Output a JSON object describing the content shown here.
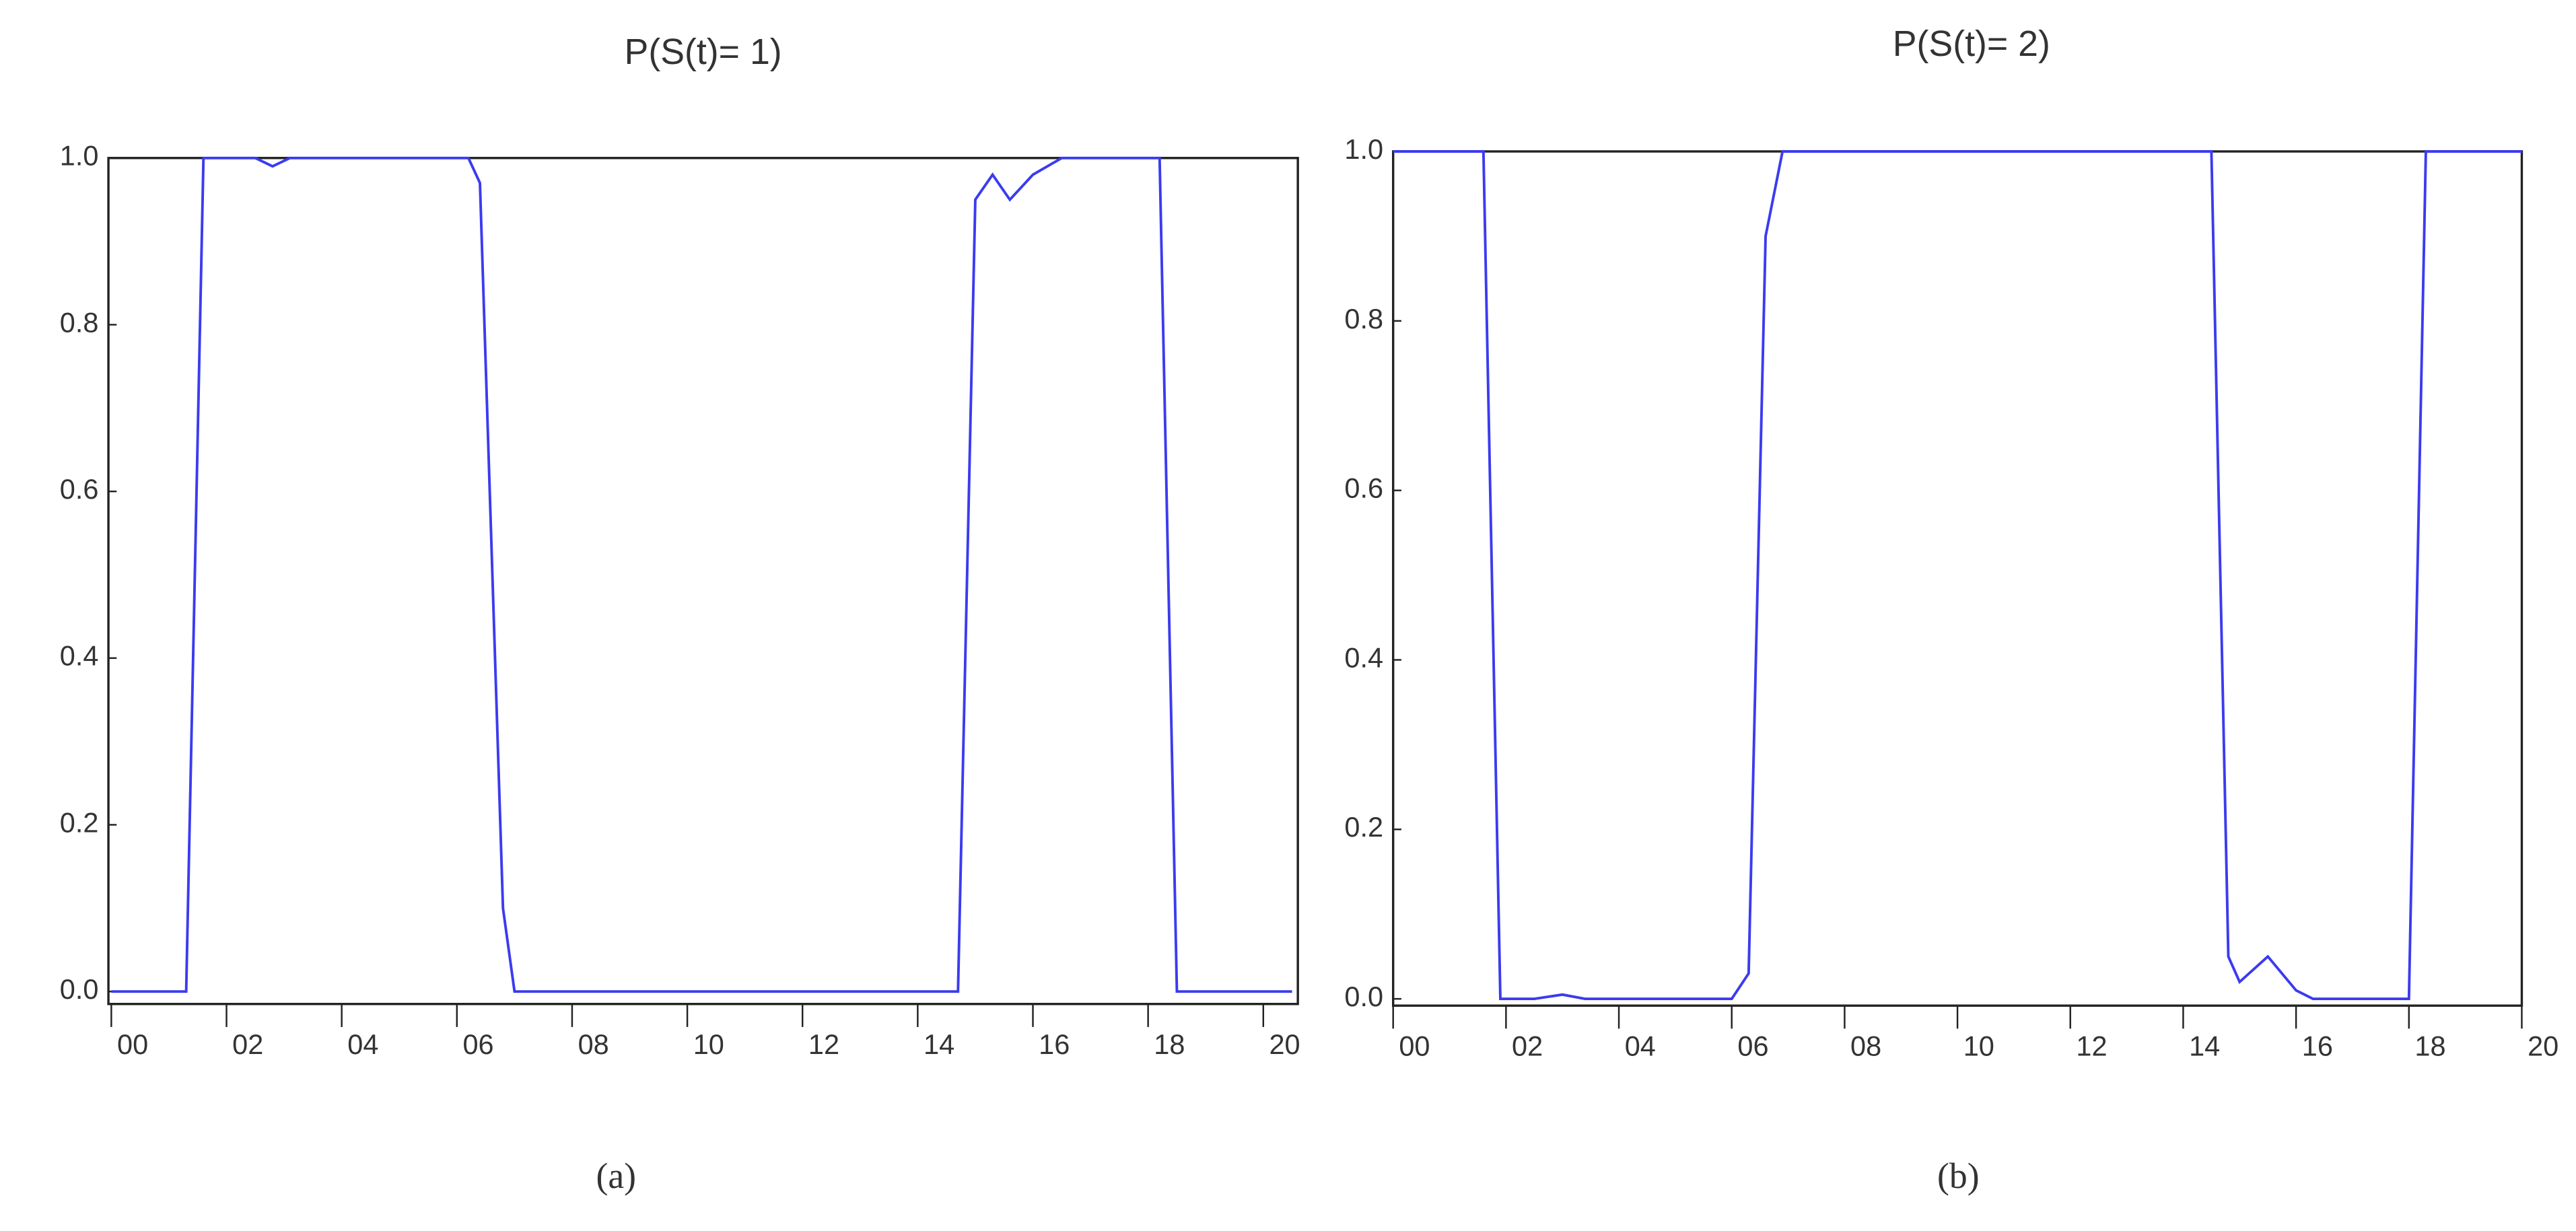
{
  "chart_data": [
    {
      "type": "line",
      "title": "P(S(t)= 1)",
      "caption": "(a)",
      "color": "#3b3bf0",
      "x": [
        0,
        1.3,
        1.6,
        2.5,
        2.8,
        3.1,
        6.2,
        6.4,
        6.8,
        7.0,
        14.7,
        15.0,
        15.3,
        15.6,
        16.0,
        16.5,
        18.2,
        18.5,
        20.5
      ],
      "values": [
        0,
        0,
        1,
        1,
        0.99,
        1,
        1,
        0.97,
        0.1,
        0,
        0,
        0.95,
        0.98,
        0.95,
        0.98,
        1,
        1,
        0,
        0
      ],
      "xlim": [
        -0.05,
        20.6
      ],
      "ylim": [
        -0.015,
        1
      ],
      "xticks": [
        {
          "value": 0,
          "label": "00"
        },
        {
          "value": 2,
          "label": "02"
        },
        {
          "value": 4,
          "label": "04"
        },
        {
          "value": 6,
          "label": "06"
        },
        {
          "value": 8,
          "label": "08"
        },
        10,
        12,
        14,
        16,
        18,
        20
      ],
      "yticks": [
        {
          "value": 0,
          "label": "0.0"
        },
        0.2,
        0.4,
        0.6,
        0.8,
        {
          "value": 1,
          "label": "1.0"
        }
      ]
    },
    {
      "type": "line",
      "title": "P(S(t)= 2)",
      "caption": "(b)",
      "color": "#3b3bf0",
      "x": [
        0,
        1.6,
        1.9,
        2.5,
        3.0,
        3.4,
        6.0,
        6.3,
        6.6,
        6.9,
        14.5,
        14.8,
        15.0,
        15.5,
        16.0,
        16.3,
        18.0,
        18.3,
        20
      ],
      "values": [
        1,
        1,
        0,
        0,
        0.005,
        0,
        0,
        0.03,
        0.9,
        1,
        1,
        0.05,
        0.02,
        0.05,
        0.01,
        0,
        0,
        1,
        1
      ],
      "xlim": [
        0,
        20
      ],
      "ylim": [
        -0.008,
        1
      ],
      "xticks": [
        {
          "value": 0,
          "label": "00"
        },
        {
          "value": 2,
          "label": "02"
        },
        {
          "value": 4,
          "label": "04"
        },
        {
          "value": 6,
          "label": "06"
        },
        {
          "value": 8,
          "label": "08"
        },
        10,
        12,
        14,
        16,
        18,
        20
      ],
      "yticks": [
        {
          "value": 0,
          "label": "0.0"
        },
        0.2,
        0.4,
        0.6,
        0.8,
        {
          "value": 1,
          "label": "1.0"
        }
      ]
    }
  ]
}
